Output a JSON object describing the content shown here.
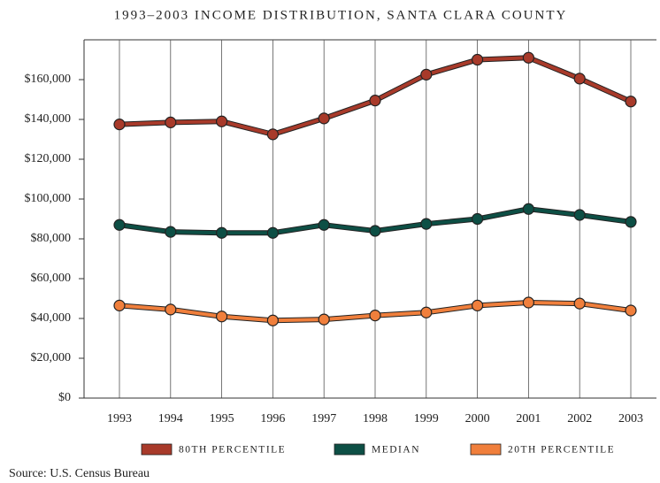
{
  "chart_data": {
    "type": "line",
    "title": "1993–2003 INCOME DISTRIBUTION, SANTA CLARA COUNTY",
    "source": "Source: U.S. Census Bureau",
    "categories": [
      "1993",
      "1994",
      "1995",
      "1996",
      "1997",
      "1998",
      "1999",
      "2000",
      "2001",
      "2002",
      "2003"
    ],
    "series": [
      {
        "name": "80TH PERCENTILE",
        "color": "#a83a2a",
        "values": [
          137500,
          138500,
          139000,
          132500,
          140500,
          149500,
          162500,
          170000,
          171000,
          160500,
          149000
        ]
      },
      {
        "name": "MEDIAN",
        "color": "#0d4f45",
        "values": [
          87000,
          83500,
          83000,
          83000,
          87000,
          84000,
          87500,
          90000,
          95000,
          92000,
          88500
        ]
      },
      {
        "name": "20TH PERCENTILE",
        "color": "#f07f3c",
        "values": [
          46500,
          44500,
          41000,
          39000,
          39500,
          41500,
          43000,
          46500,
          48000,
          47500,
          44000
        ]
      }
    ],
    "ylim": [
      0,
      180000
    ],
    "yticks": [
      {
        "value": 0,
        "label": "$0"
      },
      {
        "value": 20000,
        "label": "$20,000"
      },
      {
        "value": 40000,
        "label": "$40,000"
      },
      {
        "value": 60000,
        "label": "$60,000"
      },
      {
        "value": 80000,
        "label": "$80,000"
      },
      {
        "value": 100000,
        "label": "$100,000"
      },
      {
        "value": 120000,
        "label": "$120,000"
      },
      {
        "value": 140000,
        "label": "$140,000"
      },
      {
        "value": 160000,
        "label": "$160,000"
      }
    ],
    "legend": "bottom"
  }
}
